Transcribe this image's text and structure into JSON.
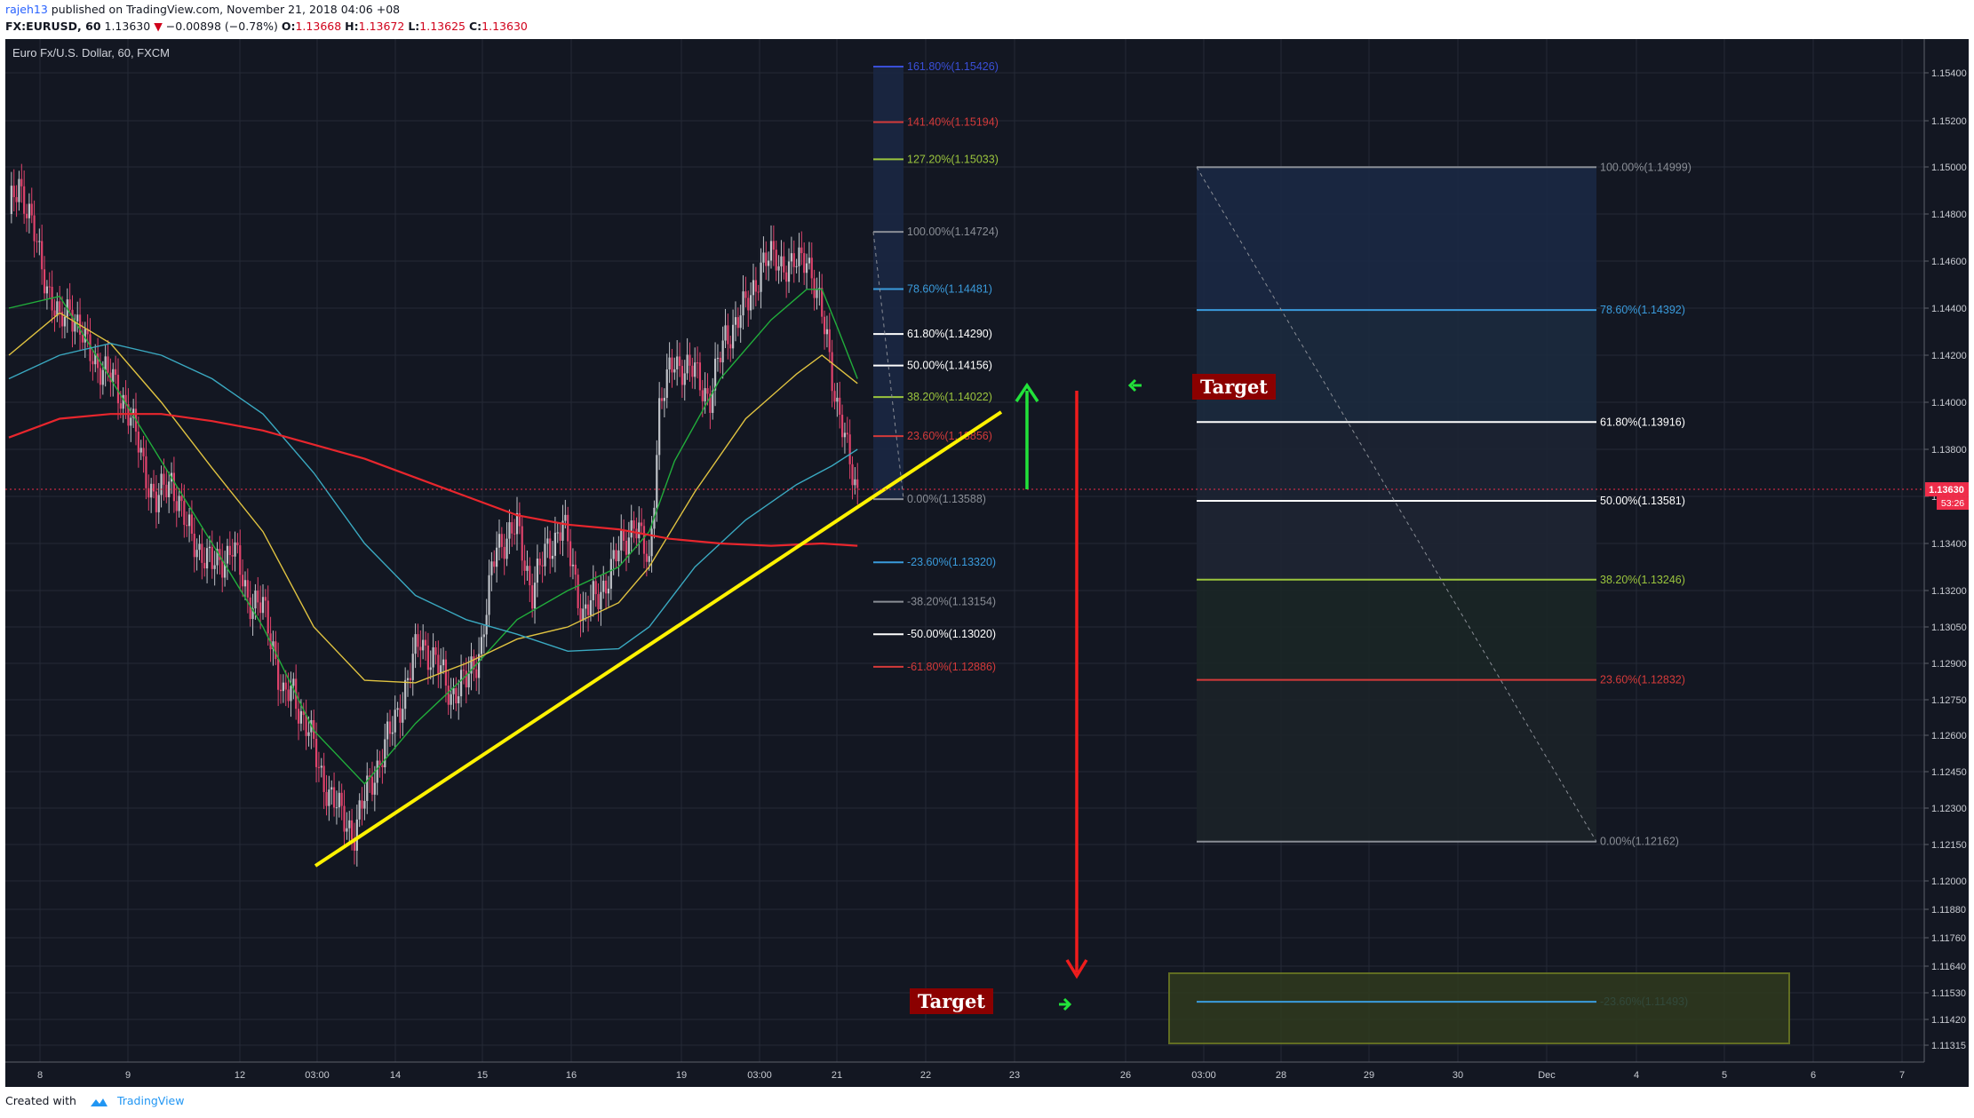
{
  "header": {
    "author": "rajeh13",
    "published_text": "published on TradingView.com, November 21, 2018 04:06 +08",
    "symbol": "FX:EURUSD, 60",
    "last": "1.13630",
    "change": "−0.00898 (−0.78%)",
    "o_label": "O:",
    "o_value": "1.13668",
    "h_label": "H:",
    "h_value": "1.13672",
    "l_label": "L:",
    "l_value": "1.13625",
    "c_label": "C:",
    "c_value": "1.13630"
  },
  "footer": {
    "created_with": "Created with",
    "brand": "TradingView"
  },
  "colors": {
    "background": "#131722",
    "grid": "#242a36",
    "up": "#bfc2c8",
    "down": "#e0436c",
    "ema_green": "#21ad3b",
    "ema_yellow": "#e0c341",
    "ema_cyan": "#3aa9c1",
    "ema_red": "#e8262d",
    "trendline": "#fff200",
    "price_marker": "#ef2d4a",
    "target_bg": "#8b0000"
  },
  "chart_data": {
    "type": "candlestick",
    "title": "Euro Fx/U.S. Dollar, 60, FXCM",
    "x_ticks": [
      "8",
      "9",
      "12",
      "03:00",
      "14",
      "15",
      "16",
      "19",
      "03:00",
      "21",
      "22",
      "23",
      "26",
      "03:00",
      "28",
      "29",
      "30",
      "Dec",
      "4",
      "5",
      "6",
      "7"
    ],
    "y_ticks": [
      "1.15400",
      "1.15200",
      "1.15000",
      "1.14800",
      "1.14600",
      "1.14400",
      "1.14200",
      "1.14000",
      "1.13800",
      "1.13600",
      "1.13400",
      "1.13200",
      "1.13050",
      "1.12900",
      "1.12750",
      "1.12600",
      "1.12450",
      "1.12300",
      "1.12150",
      "1.12000",
      "1.11880",
      "1.11760",
      "1.11640",
      "1.11530",
      "1.11420",
      "1.11315"
    ],
    "last_price": "1.13630",
    "countdown": "53:26",
    "price_path": [
      [
        0,
        1.148
      ],
      [
        4,
        1.1495
      ],
      [
        12,
        1.1462
      ],
      [
        20,
        1.1432
      ],
      [
        24,
        1.1442
      ],
      [
        30,
        1.1424
      ],
      [
        40,
        1.141
      ],
      [
        46,
        1.14
      ],
      [
        54,
        1.137
      ],
      [
        58,
        1.1357
      ],
      [
        64,
        1.1368
      ],
      [
        70,
        1.1346
      ],
      [
        80,
        1.133
      ],
      [
        88,
        1.1338
      ],
      [
        94,
        1.1318
      ],
      [
        100,
        1.1312
      ],
      [
        104,
        1.1298
      ],
      [
        108,
        1.1275
      ],
      [
        112,
        1.1278
      ],
      [
        118,
        1.1262
      ],
      [
        122,
        1.1246
      ],
      [
        130,
        1.1228
      ],
      [
        136,
        1.122
      ],
      [
        142,
        1.124
      ],
      [
        150,
        1.126
      ],
      [
        156,
        1.128
      ],
      [
        162,
        1.13
      ],
      [
        168,
        1.129
      ],
      [
        174,
        1.1278
      ],
      [
        180,
        1.1282
      ],
      [
        186,
        1.1298
      ],
      [
        192,
        1.134
      ],
      [
        200,
        1.1346
      ],
      [
        206,
        1.132
      ],
      [
        212,
        1.1338
      ],
      [
        218,
        1.1348
      ],
      [
        226,
        1.131
      ],
      [
        232,
        1.1318
      ],
      [
        240,
        1.1336
      ],
      [
        246,
        1.135
      ],
      [
        252,
        1.133
      ],
      [
        256,
        1.1398
      ],
      [
        262,
        1.1418
      ],
      [
        270,
        1.1412
      ],
      [
        276,
        1.1402
      ],
      [
        282,
        1.1428
      ],
      [
        290,
        1.144
      ],
      [
        296,
        1.1458
      ],
      [
        302,
        1.1462
      ],
      [
        308,
        1.1456
      ],
      [
        314,
        1.1464
      ],
      [
        318,
        1.1444
      ],
      [
        322,
        1.1428
      ],
      [
        326,
        1.1398
      ],
      [
        330,
        1.1378
      ],
      [
        334,
        1.1363
      ]
    ],
    "ema_series": [
      {
        "key": "ema_green",
        "points": [
          [
            0,
            1.144
          ],
          [
            20,
            1.1445
          ],
          [
            40,
            1.141
          ],
          [
            60,
            1.1375
          ],
          [
            80,
            1.134
          ],
          [
            100,
            1.1305
          ],
          [
            120,
            1.1262
          ],
          [
            140,
            1.124
          ],
          [
            160,
            1.1265
          ],
          [
            180,
            1.1285
          ],
          [
            200,
            1.1308
          ],
          [
            220,
            1.132
          ],
          [
            240,
            1.133
          ],
          [
            252,
            1.1345
          ],
          [
            262,
            1.1375
          ],
          [
            280,
            1.141
          ],
          [
            300,
            1.1435
          ],
          [
            314,
            1.1448
          ],
          [
            320,
            1.1448
          ],
          [
            326,
            1.1432
          ],
          [
            334,
            1.141
          ]
        ]
      },
      {
        "key": "ema_yellow",
        "points": [
          [
            0,
            1.142
          ],
          [
            20,
            1.1438
          ],
          [
            40,
            1.1425
          ],
          [
            60,
            1.14
          ],
          [
            80,
            1.1372
          ],
          [
            100,
            1.1345
          ],
          [
            120,
            1.1305
          ],
          [
            140,
            1.1283
          ],
          [
            160,
            1.1282
          ],
          [
            180,
            1.129
          ],
          [
            200,
            1.13
          ],
          [
            220,
            1.1305
          ],
          [
            240,
            1.1315
          ],
          [
            252,
            1.133
          ],
          [
            270,
            1.1362
          ],
          [
            290,
            1.1393
          ],
          [
            310,
            1.1412
          ],
          [
            320,
            1.142
          ],
          [
            334,
            1.1408
          ]
        ]
      },
      {
        "key": "ema_cyan",
        "points": [
          [
            0,
            1.141
          ],
          [
            20,
            1.142
          ],
          [
            40,
            1.1425
          ],
          [
            60,
            1.142
          ],
          [
            80,
            1.141
          ],
          [
            100,
            1.1395
          ],
          [
            120,
            1.137
          ],
          [
            140,
            1.134
          ],
          [
            160,
            1.1318
          ],
          [
            180,
            1.1308
          ],
          [
            200,
            1.1302
          ],
          [
            220,
            1.1295
          ],
          [
            240,
            1.1296
          ],
          [
            252,
            1.1305
          ],
          [
            270,
            1.133
          ],
          [
            290,
            1.135
          ],
          [
            310,
            1.1365
          ],
          [
            324,
            1.1373
          ],
          [
            334,
            1.138
          ]
        ]
      },
      {
        "key": "ema_red",
        "points": [
          [
            0,
            1.1385
          ],
          [
            20,
            1.1393
          ],
          [
            40,
            1.1395
          ],
          [
            60,
            1.1395
          ],
          [
            80,
            1.1392
          ],
          [
            100,
            1.1388
          ],
          [
            120,
            1.1382
          ],
          [
            140,
            1.1376
          ],
          [
            160,
            1.1368
          ],
          [
            180,
            1.136
          ],
          [
            200,
            1.1352
          ],
          [
            220,
            1.1348
          ],
          [
            240,
            1.1346
          ],
          [
            260,
            1.1342
          ],
          [
            280,
            1.134
          ],
          [
            300,
            1.1339
          ],
          [
            320,
            1.134
          ],
          [
            334,
            1.1339
          ]
        ]
      }
    ],
    "fib_left": [
      {
        "label": "161.80%(1.15426)",
        "color": "#3a4fd8"
      },
      {
        "label": "141.40%(1.15194)",
        "color": "#d43a3a"
      },
      {
        "label": "127.20%(1.15033)",
        "color": "#9bc53d"
      },
      {
        "label": "100.00%(1.14724)",
        "color": "#8a8e96"
      },
      {
        "label": "78.60%(1.14481)",
        "color": "#3a9bdc"
      },
      {
        "label": "61.80%(1.14290)",
        "color": "#ffffff"
      },
      {
        "label": "50.00%(1.14156)",
        "color": "#ffffff"
      },
      {
        "label": "38.20%(1.14022)",
        "color": "#9bc53d"
      },
      {
        "label": "23.60%(1.13856)",
        "color": "#d43a3a"
      },
      {
        "label": "0.00%(1.13588)",
        "color": "#8a8e96"
      },
      {
        "label": "-23.60%(1.13320)",
        "color": "#3a9bdc"
      },
      {
        "label": "-38.20%(1.13154)",
        "color": "#8a8e96"
      },
      {
        "label": "-50.00%(1.13020)",
        "color": "#ffffff"
      },
      {
        "label": "-61.80%(1.12886)",
        "color": "#d43a3a"
      }
    ],
    "fib_right": [
      {
        "label": "100.00%(1.14999)",
        "color": "#8a8e96"
      },
      {
        "label": "78.60%(1.14392)",
        "color": "#3a9bdc"
      },
      {
        "label": "61.80%(1.13916)",
        "color": "#ffffff"
      },
      {
        "label": "50.00%(1.13581)",
        "color": "#ffffff"
      },
      {
        "label": "38.20%(1.13246)",
        "color": "#9bc53d"
      },
      {
        "label": "23.60%(1.12832)",
        "color": "#d43a3a"
      },
      {
        "label": "0.00%(1.12162)",
        "color": "#8a8e96"
      },
      {
        "label": "-23.60%(1.11493)",
        "color": "#3a9bdc"
      }
    ],
    "annotations": {
      "target_label": "Target"
    }
  }
}
